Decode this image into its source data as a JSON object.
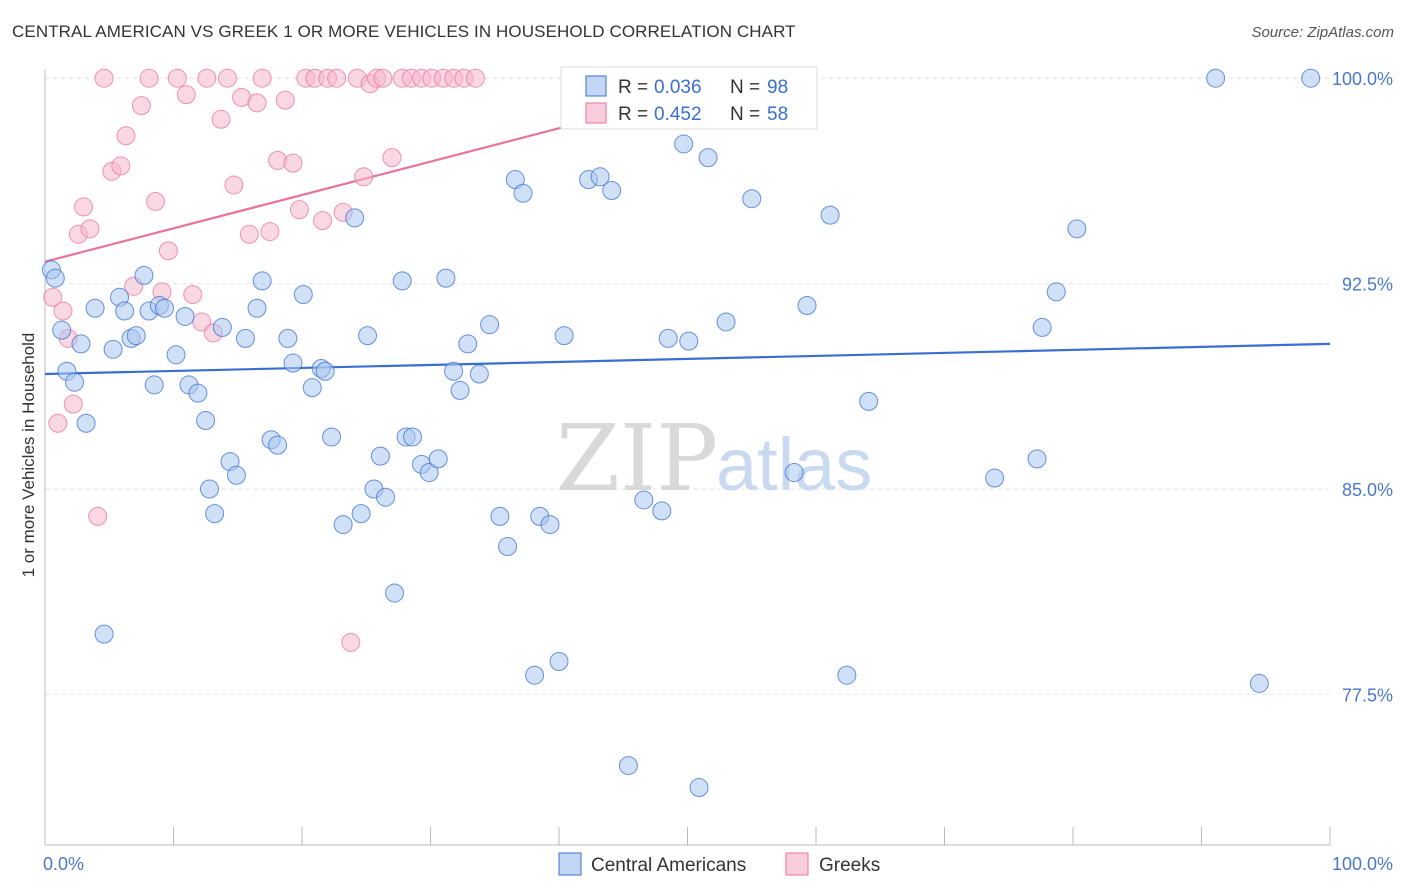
{
  "title": "CENTRAL AMERICAN VS GREEK 1 OR MORE VEHICLES IN HOUSEHOLD CORRELATION CHART",
  "source": "Source: ZipAtlas.com",
  "watermark": {
    "zip": "ZIP",
    "atlas": "atlas"
  },
  "colors": {
    "blue": "#3a6fd0",
    "blue_fill": "#a9c6f0",
    "pink": "#e8739c",
    "pink_fill": "#f6b8cc",
    "axis_label": "#4a78c8"
  },
  "chart_data": {
    "type": "scatter",
    "title": "CENTRAL AMERICAN VS GREEK 1 OR MORE VEHICLES IN HOUSEHOLD CORRELATION CHART",
    "xlabel": "",
    "ylabel": "1 or more Vehicles in Household",
    "xlim": [
      0,
      100
    ],
    "ylim": [
      72.0,
      100.3
    ],
    "x_tick_labels": [
      "0.0%",
      "100.0%"
    ],
    "y_ticks": [
      100.0,
      92.5,
      85.0,
      77.5
    ],
    "y_tick_labels": [
      "100.0%",
      "92.5%",
      "85.0%",
      "77.5%"
    ],
    "grid": true,
    "legend_position": "top-center",
    "stats": [
      {
        "r_label": "R = ",
        "r": "0.036",
        "n_label": "N = ",
        "n": "98"
      },
      {
        "r_label": "R = ",
        "r": "0.452",
        "n_label": "N = ",
        "n": "58"
      }
    ],
    "series": [
      {
        "name": "Central Americans",
        "color": "#3a6fd0",
        "trend": {
          "x": [
            0,
            100
          ],
          "y": [
            89.2,
            90.3
          ]
        },
        "x": [
          0.5,
          0.8,
          1.3,
          1.7,
          2.3,
          2.8,
          3.2,
          3.9,
          4.6,
          5.3,
          5.8,
          6.2,
          6.7,
          7.1,
          7.7,
          8.1,
          8.5,
          8.9,
          9.3,
          10.2,
          10.9,
          11.2,
          11.9,
          12.5,
          12.8,
          13.2,
          13.8,
          14.4,
          14.9,
          15.6,
          16.5,
          16.9,
          17.6,
          18.1,
          18.9,
          19.3,
          20.1,
          20.8,
          21.5,
          21.8,
          22.3,
          23.2,
          24.1,
          24.6,
          25.1,
          25.6,
          26.1,
          26.5,
          27.2,
          27.8,
          28.1,
          28.6,
          29.3,
          29.9,
          30.6,
          31.2,
          31.8,
          32.3,
          32.9,
          33.8,
          34.6,
          35.4,
          36.0,
          36.6,
          37.2,
          38.1,
          38.5,
          39.3,
          40.0,
          40.4,
          41.6,
          42.3,
          43.2,
          44.1,
          45.4,
          46.6,
          48.0,
          48.5,
          49.7,
          50.1,
          50.9,
          51.6,
          53.0,
          55.0,
          56.0,
          58.3,
          59.3,
          61.1,
          62.4,
          64.1,
          73.9,
          77.2,
          77.6,
          78.7,
          80.3,
          91.1,
          94.5,
          98.5
        ],
        "y": [
          93.0,
          92.7,
          90.8,
          89.3,
          88.9,
          90.3,
          87.4,
          91.6,
          79.7,
          90.1,
          92.0,
          91.5,
          90.5,
          90.6,
          92.8,
          91.5,
          88.8,
          91.7,
          91.6,
          89.9,
          91.3,
          88.8,
          88.5,
          87.5,
          85.0,
          84.1,
          90.9,
          86.0,
          85.5,
          90.5,
          91.6,
          92.6,
          86.8,
          86.6,
          90.5,
          89.6,
          92.1,
          88.7,
          89.4,
          89.3,
          86.9,
          83.7,
          94.9,
          84.1,
          90.6,
          85.0,
          86.2,
          84.7,
          81.2,
          92.6,
          86.9,
          86.9,
          85.9,
          85.6,
          86.1,
          92.7,
          89.3,
          88.6,
          90.3,
          89.2,
          91.0,
          84.0,
          82.9,
          96.3,
          95.8,
          78.2,
          84.0,
          83.7,
          78.7,
          90.6,
          100.0,
          96.3,
          96.4,
          95.9,
          74.9,
          84.6,
          84.2,
          90.5,
          97.6,
          90.4,
          74.1,
          97.1,
          91.1,
          95.6,
          100.0,
          85.6,
          91.7,
          95.0,
          78.2,
          88.2,
          85.4,
          86.1,
          90.9,
          92.2,
          94.5,
          100.0,
          77.9,
          100.0
        ]
      },
      {
        "name": "Greeks",
        "color": "#e8739c",
        "trend": {
          "x": [
            0,
            55
          ],
          "y": [
            93.3,
            100.0
          ]
        },
        "x": [
          0.6,
          1.0,
          1.4,
          1.8,
          2.2,
          2.6,
          3.0,
          3.5,
          4.1,
          4.6,
          5.2,
          5.9,
          6.3,
          6.9,
          7.5,
          8.1,
          8.6,
          9.1,
          9.6,
          10.3,
          11.0,
          11.5,
          12.2,
          12.6,
          13.1,
          13.7,
          14.2,
          14.7,
          15.3,
          15.9,
          16.5,
          16.9,
          17.5,
          18.1,
          18.7,
          19.3,
          19.8,
          20.3,
          21.0,
          21.6,
          22.0,
          22.7,
          23.2,
          23.8,
          24.3,
          24.8,
          25.3,
          25.8,
          26.3,
          27.0,
          27.8,
          28.5,
          29.3,
          30.1,
          31.0,
          31.8,
          32.6,
          33.5
        ],
        "y": [
          92.0,
          87.4,
          91.5,
          90.5,
          88.1,
          94.3,
          95.3,
          94.5,
          84.0,
          100.0,
          96.6,
          96.8,
          97.9,
          92.4,
          99.0,
          100.0,
          95.5,
          92.2,
          93.7,
          100.0,
          99.4,
          92.1,
          91.1,
          100.0,
          90.7,
          98.5,
          100.0,
          96.1,
          99.3,
          94.3,
          99.1,
          100.0,
          94.4,
          97.0,
          99.2,
          96.9,
          95.2,
          100.0,
          100.0,
          94.8,
          100.0,
          100.0,
          95.1,
          79.4,
          100.0,
          96.4,
          99.8,
          100.0,
          100.0,
          97.1,
          100.0,
          100.0,
          100.0,
          100.0,
          100.0,
          100.0,
          100.0,
          100.0
        ]
      }
    ]
  }
}
